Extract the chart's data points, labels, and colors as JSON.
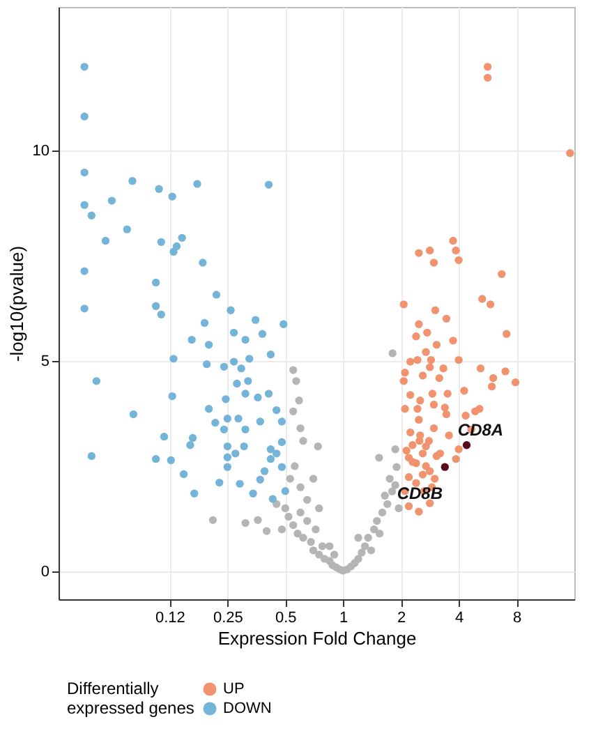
{
  "chart_data": {
    "type": "scatter",
    "xlabel": "Expression Fold Change",
    "ylabel": "-log10(pvalue)",
    "legend_title": "Differentially expressed genes",
    "legend": "bottom",
    "grid": true,
    "log": "x",
    "marker": "circle",
    "xlim": [
      0.033,
      16
    ],
    "ylim": [
      -0.66,
      13.4
    ],
    "xticks": [
      {
        "value": 0.125,
        "label": "0.12"
      },
      0.25,
      0.5,
      1,
      2,
      4,
      8
    ],
    "yticks": [
      0,
      5,
      10
    ],
    "series": [
      {
        "color": "#b5b5b5",
        "x": [
          0.55,
          0.57,
          0.59,
          0.55,
          0.6,
          0.62,
          0.74,
          0.21,
          0.31,
          0.36,
          0.4,
          0.45,
          0.5,
          0.52,
          0.55,
          0.48,
          0.6,
          0.58,
          0.62,
          0.65,
          0.68,
          0.7,
          0.72,
          0.75,
          0.78,
          0.8,
          0.85,
          0.88,
          0.92,
          0.96,
          1.0,
          1.05,
          1.1,
          1.15,
          1.2,
          1.25,
          1.3,
          1.35,
          1.4,
          1.45,
          1.5,
          1.55,
          1.6,
          1.54,
          1.65,
          1.7,
          1.75,
          1.8,
          1.87,
          1.9,
          1.87,
          1.81,
          0.85,
          0.9,
          0.6,
          0.65,
          0.7,
          0.53,
          0.56,
          1.95,
          1.2,
          0.75
        ],
        "values": [
          4.78,
          4.52,
          4.06,
          3.8,
          3.4,
          3.1,
          2.97,
          1.22,
          1.15,
          1.22,
          0.96,
          1.6,
          1.5,
          1.3,
          1.1,
          1.0,
          1.4,
          0.9,
          0.8,
          1.2,
          0.7,
          0.5,
          1.0,
          0.4,
          0.6,
          0.3,
          0.25,
          0.15,
          0.1,
          0.05,
          0.02,
          0.05,
          0.12,
          0.2,
          0.3,
          0.45,
          0.6,
          0.8,
          0.5,
          1.0,
          1.2,
          0.9,
          1.4,
          2.7,
          1.8,
          1.6,
          2.2,
          1.9,
          2.9,
          2.48,
          2.05,
          5.18,
          0.6,
          0.4,
          2.0,
          1.7,
          2.2,
          2.2,
          2.5,
          1.5,
          0.8,
          1.5
        ]
      },
      {
        "name": "UP",
        "color": "#f0936e",
        "x": [
          5.66,
          5.66,
          15.2,
          2.48,
          2.83,
          2.97,
          3.74,
          3.87,
          4.0,
          6.7,
          5.3,
          2.07,
          5.85,
          3.02,
          3.45,
          2.48,
          2.74,
          2.4,
          3.07,
          3.74,
          7.1,
          2.7,
          2.24,
          2.44,
          2.87,
          4.0,
          2.83,
          2.1,
          3.33,
          5.2,
          7.0,
          6.05,
          7.9,
          2.07,
          2.6,
          3.17,
          5.95,
          2.24,
          2.52,
          2.92,
          3.5,
          4.27,
          2.97,
          3.39,
          2.1,
          2.44,
          5.13,
          4.87,
          3.45,
          2.48,
          4.35,
          2.24,
          2.97,
          3.56,
          4.65,
          2.52,
          3.87,
          4.0,
          2.14,
          2.7,
          3.07,
          2.4,
          2.83,
          2.2,
          2.64,
          2.2,
          2.48,
          2.83,
          2.1,
          2.3,
          2.5,
          2.6,
          2.8,
          2.3,
          2.7,
          3.0,
          2.4,
          2.9,
          2.2,
          3.2,
          2.6
        ],
        "values": [
          11.98,
          11.72,
          9.93,
          7.56,
          7.62,
          7.33,
          7.85,
          7.62,
          7.39,
          7.06,
          6.47,
          6.34,
          6.34,
          6.2,
          6.0,
          5.87,
          5.67,
          5.58,
          5.38,
          5.48,
          5.64,
          5.21,
          4.98,
          5.02,
          5.02,
          5.02,
          4.85,
          4.72,
          4.82,
          4.82,
          4.75,
          4.59,
          4.49,
          4.52,
          4.65,
          4.59,
          4.39,
          4.19,
          4.06,
          4.22,
          4.22,
          4.29,
          3.96,
          3.89,
          3.86,
          3.86,
          3.86,
          3.8,
          3.73,
          3.6,
          3.7,
          3.3,
          3.4,
          3.23,
          3.37,
          3.23,
          2.67,
          2.9,
          2.87,
          2.97,
          2.74,
          2.57,
          2.38,
          2.24,
          1.91,
          1.55,
          1.42,
          1.62,
          1.91,
          3.0,
          3.1,
          2.8,
          3.1,
          2.6,
          2.5,
          2.2,
          2.1,
          2.0,
          2.7,
          2.8,
          2.3
        ]
      },
      {
        "name": "DOWN",
        "color": "#74b4d8",
        "x": [
          0.045,
          0.045,
          0.045,
          0.08,
          0.11,
          0.174,
          0.41,
          0.045,
          0.0625,
          0.129,
          0.049,
          0.075,
          0.058,
          0.113,
          0.145,
          0.136,
          0.131,
          0.186,
          0.045,
          0.106,
          0.219,
          0.045,
          0.106,
          0.113,
          0.26,
          0.49,
          0.35,
          0.19,
          0.163,
          0.2,
          0.27,
          0.31,
          0.38,
          0.131,
          0.195,
          0.24,
          0.27,
          0.325,
          0.42,
          0.052,
          0.295,
          0.28,
          0.32,
          0.129,
          0.081,
          0.2,
          0.245,
          0.31,
          0.36,
          0.41,
          0.45,
          0.216,
          0.25,
          0.285,
          0.37,
          0.48,
          0.24,
          0.31,
          0.117,
          0.165,
          0.16,
          0.25,
          0.305,
          0.42,
          0.48,
          0.049,
          0.106,
          0.127,
          0.25,
          0.275,
          0.42,
          0.45,
          0.148,
          0.25,
          0.39,
          0.48,
          0.227,
          0.29,
          0.37,
          0.168,
          0.34,
          0.43,
          0.5
        ],
        "values": [
          11.98,
          10.8,
          9.47,
          9.27,
          9.08,
          9.2,
          9.18,
          8.7,
          8.8,
          8.9,
          8.45,
          8.12,
          7.85,
          7.82,
          7.92,
          7.72,
          7.59,
          7.33,
          7.13,
          6.86,
          6.57,
          6.24,
          6.3,
          6.1,
          6.2,
          5.87,
          5.97,
          5.9,
          5.5,
          5.38,
          5.67,
          5.5,
          5.64,
          5.05,
          4.92,
          4.86,
          4.98,
          5.05,
          5.15,
          4.52,
          4.82,
          4.46,
          4.52,
          4.16,
          3.73,
          3.86,
          4.09,
          4.22,
          4.13,
          4.22,
          3.83,
          3.53,
          3.63,
          3.63,
          3.56,
          3.56,
          3.37,
          3.37,
          3.2,
          3.17,
          3.0,
          2.97,
          2.97,
          2.9,
          3.07,
          2.74,
          2.67,
          2.64,
          2.71,
          2.8,
          2.67,
          2.8,
          2.31,
          2.48,
          2.38,
          2.48,
          2.11,
          2.08,
          2.18,
          1.85,
          1.85,
          1.72,
          1.91
        ]
      },
      {
        "color": "#5a0a1e",
        "x": [
          4.4,
          3.39
        ],
        "values": [
          3.0,
          2.48
        ]
      }
    ],
    "annotations": [
      {
        "text": "CD8A",
        "x": 4.4,
        "y": 3.0
      },
      {
        "text": "CD8B",
        "x": 3.39,
        "y": 2.48
      }
    ]
  }
}
